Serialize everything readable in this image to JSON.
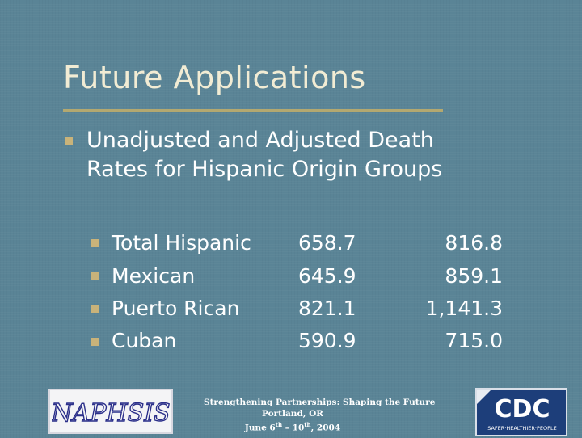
{
  "slide": {
    "title": "Future Applications",
    "main_bullet_line1": "Unadjusted and Adjusted Death",
    "main_bullet_line2": "Rates for Hispanic Origin Groups",
    "rows": [
      {
        "label": "Total Hispanic",
        "unadjusted": "658.7",
        "adjusted": "816.8"
      },
      {
        "label": "Mexican",
        "unadjusted": "645.9",
        "adjusted": "859.1"
      },
      {
        "label": "Puerto Rican",
        "unadjusted": "821.1",
        "adjusted": "1,141.3"
      },
      {
        "label": "Cuban",
        "unadjusted": "590.9",
        "adjusted": "715.0"
      }
    ]
  },
  "footer": {
    "line1": "Strengthening Partnerships: Shaping the Future",
    "line2": "Portland, OR",
    "date_june": "June 6",
    "date_sup1": "th",
    "date_dash": " – 10",
    "date_sup2": "th",
    "date_year": ", 2004"
  },
  "logos": {
    "naphsis_text": "NAPHSIS",
    "cdc_text": "CDC",
    "cdc_tagline": "SAFER·HEALTHIER·PEOPLE"
  },
  "colors": {
    "background": "#5a8496",
    "title": "#f2ecd4",
    "rule": "#b3a870",
    "bullet": "#c9b37a",
    "cdc_blue": "#1d3e7a"
  }
}
